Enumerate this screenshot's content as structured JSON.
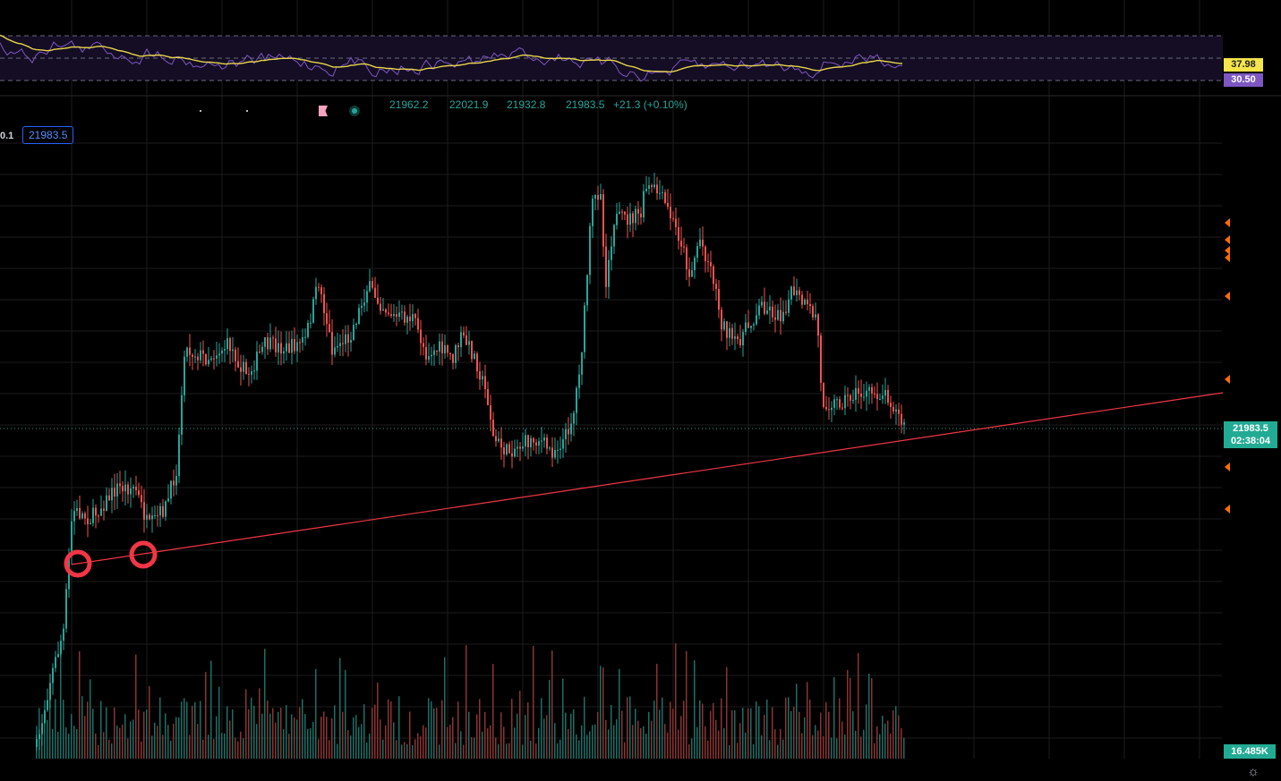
{
  "colors": {
    "background": "#000000",
    "grid": "#1c1c1c",
    "up": "#26a69a",
    "down": "#ef5350",
    "trendline": "#f23645",
    "rsi_line": "#7e57c2",
    "rsi_ma": "#e8d44a",
    "rsi_band": "#140d24",
    "marker": "#ff6d00"
  },
  "ohlc": {
    "open": "21962.2",
    "high": "22021.9",
    "low": "21932.8",
    "close": "21983.5",
    "change": "+21.3 (+0.10%)"
  },
  "price_tag": "21983.5",
  "left_partial_label": "0.1",
  "rsi": {
    "ma_value": "37.98",
    "rsi_value": "30.50"
  },
  "last_price": {
    "price": "21983.5",
    "countdown": "02:38:04"
  },
  "volume_label": "16.485K",
  "icons": {
    "flag": "flag-icon",
    "live": "live-dot-icon",
    "settings": "gear-icon"
  },
  "chart_data": {
    "type": "candlestick",
    "trendline": "ascending support line drawn through two circled lows",
    "last_price_line": "dotted",
    "grid": true,
    "panes": [
      "rsi",
      "price",
      "volume"
    ]
  }
}
